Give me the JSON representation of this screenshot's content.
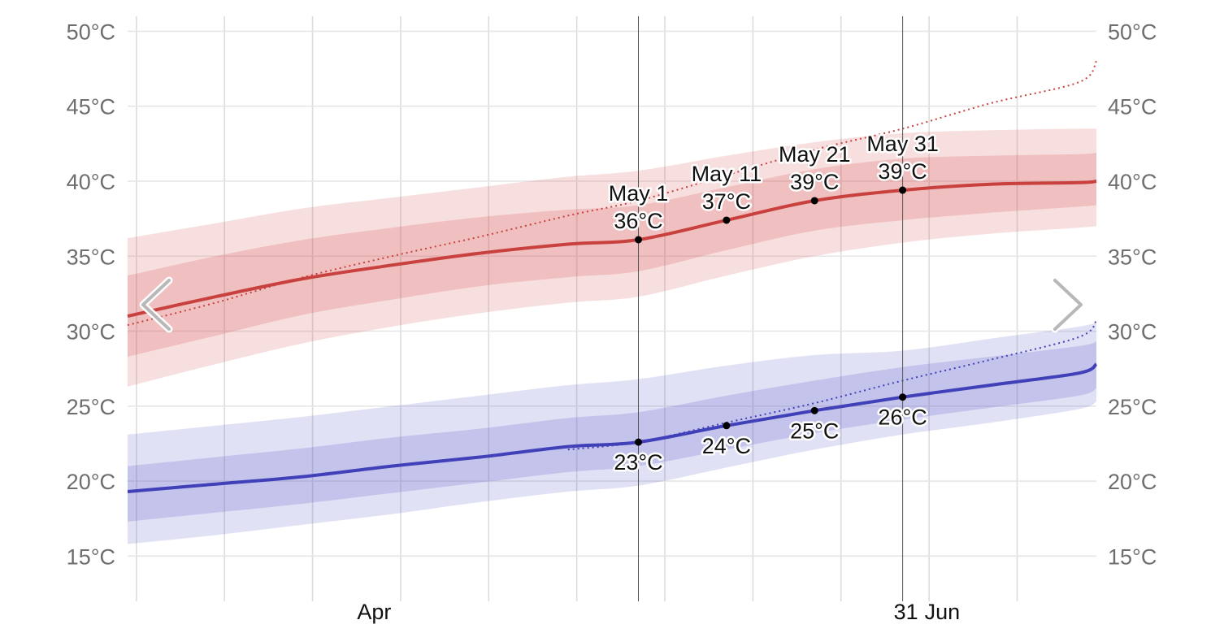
{
  "chart_data": {
    "type": "area",
    "x_axis": {
      "tick_labels": [
        {
          "label": "Apr",
          "date": "2024-04-01"
        },
        {
          "label": "31",
          "date": "2024-05-31"
        },
        {
          "label": "Jun",
          "date": "2024-06-01"
        }
      ],
      "range": [
        "2024-03-04",
        "2024-06-22"
      ]
    },
    "y_axis": {
      "unit": "°C",
      "ylim": [
        13.5,
        51
      ],
      "ticks": [
        {
          "value": 15,
          "label": "15°C"
        },
        {
          "value": 20,
          "label": "20°C"
        },
        {
          "value": 25,
          "label": "25°C"
        },
        {
          "value": 30,
          "label": "30°C"
        },
        {
          "value": 35,
          "label": "35°C"
        },
        {
          "value": 40,
          "label": "40°C"
        },
        {
          "value": 45,
          "label": "45°C"
        },
        {
          "value": 50,
          "label": "50°C"
        }
      ],
      "show_on_both_sides": true
    },
    "grid": true,
    "highlight_dates": [
      "2024-05-01",
      "2024-05-31"
    ],
    "series": [
      {
        "id": "high",
        "line_color": "#c8413e",
        "band_color": "#d84f4f",
        "x": [
          "2024-03-04",
          "2024-03-14",
          "2024-03-24",
          "2024-04-03",
          "2024-04-13",
          "2024-04-23",
          "2024-05-01",
          "2024-05-11",
          "2024-05-21",
          "2024-05-31",
          "2024-06-10",
          "2024-06-20",
          "2024-06-22"
        ],
        "values": [
          31.0,
          32.3,
          33.5,
          34.4,
          35.2,
          35.8,
          36.1,
          37.4,
          38.7,
          39.4,
          39.8,
          39.9,
          40.0
        ],
        "p25": [
          28.3,
          29.7,
          31.1,
          32.1,
          33.0,
          33.6,
          34.0,
          35.4,
          36.7,
          37.4,
          37.9,
          38.3,
          38.4
        ],
        "p75": [
          33.7,
          35.0,
          36.1,
          36.9,
          37.6,
          38.1,
          38.4,
          39.6,
          40.8,
          41.5,
          41.7,
          41.8,
          41.9
        ],
        "p10": [
          26.3,
          27.8,
          29.2,
          30.3,
          31.2,
          31.9,
          32.3,
          33.7,
          35.0,
          35.9,
          36.5,
          36.9,
          37.0
        ],
        "p90": [
          36.2,
          37.2,
          38.2,
          38.9,
          39.6,
          40.3,
          40.7,
          41.7,
          42.6,
          43.2,
          43.4,
          43.5,
          43.5
        ],
        "trend": [
          30.4,
          31.9,
          33.6,
          35.0,
          36.3,
          37.7,
          38.7,
          40.4,
          42.1,
          43.5,
          45.2,
          46.6,
          48.0
        ]
      },
      {
        "id": "low",
        "line_color": "#4040b8",
        "band_color": "#5a5ac8",
        "x": [
          "2024-03-04",
          "2024-03-14",
          "2024-03-24",
          "2024-04-03",
          "2024-04-13",
          "2024-04-23",
          "2024-05-01",
          "2024-05-11",
          "2024-05-21",
          "2024-05-31",
          "2024-06-10",
          "2024-06-20",
          "2024-06-22"
        ],
        "values": [
          19.3,
          19.8,
          20.3,
          21.0,
          21.6,
          22.3,
          22.6,
          23.7,
          24.7,
          25.6,
          26.4,
          27.2,
          27.8
        ],
        "p25": [
          17.3,
          17.9,
          18.5,
          19.2,
          19.9,
          20.6,
          21.0,
          22.1,
          23.2,
          24.1,
          24.9,
          25.7,
          26.2
        ],
        "p75": [
          21.0,
          21.6,
          22.2,
          22.9,
          23.5,
          24.2,
          24.6,
          25.7,
          26.7,
          27.6,
          28.3,
          29.0,
          29.3
        ],
        "p10": [
          15.8,
          16.4,
          17.1,
          17.8,
          18.6,
          19.3,
          19.7,
          20.9,
          22.1,
          23.1,
          23.9,
          24.8,
          25.3
        ],
        "p90": [
          23.1,
          23.7,
          24.3,
          25.0,
          25.7,
          26.4,
          26.8,
          27.7,
          28.4,
          28.7,
          29.5,
          30.3,
          30.6
        ],
        "trend": [
          null,
          null,
          null,
          null,
          null,
          22.1,
          22.6,
          23.9,
          25.2,
          26.7,
          28.1,
          29.6,
          30.7
        ]
      }
    ],
    "annotations": [
      {
        "series": "high",
        "date": "2024-05-01",
        "value": 36.1,
        "label_date": "May 1",
        "label_value": "36°C",
        "position": "above"
      },
      {
        "series": "high",
        "date": "2024-05-11",
        "value": 37.4,
        "label_date": "May 11",
        "label_value": "37°C",
        "position": "above"
      },
      {
        "series": "high",
        "date": "2024-05-21",
        "value": 38.7,
        "label_date": "May 21",
        "label_value": "39°C",
        "position": "above"
      },
      {
        "series": "high",
        "date": "2024-05-31",
        "value": 39.4,
        "label_date": "May 31",
        "label_value": "39°C",
        "position": "above"
      },
      {
        "series": "low",
        "date": "2024-05-01",
        "value": 22.6,
        "label_value": "23°C",
        "position": "below"
      },
      {
        "series": "low",
        "date": "2024-05-11",
        "value": 23.7,
        "label_value": "24°C",
        "position": "below"
      },
      {
        "series": "low",
        "date": "2024-05-21",
        "value": 24.7,
        "label_value": "25°C",
        "position": "below"
      },
      {
        "series": "low",
        "date": "2024-05-31",
        "value": 25.6,
        "label_value": "26°C",
        "position": "below"
      }
    ]
  },
  "navigation": {
    "prev_icon": "chevron-left-icon",
    "next_icon": "chevron-right-icon"
  }
}
